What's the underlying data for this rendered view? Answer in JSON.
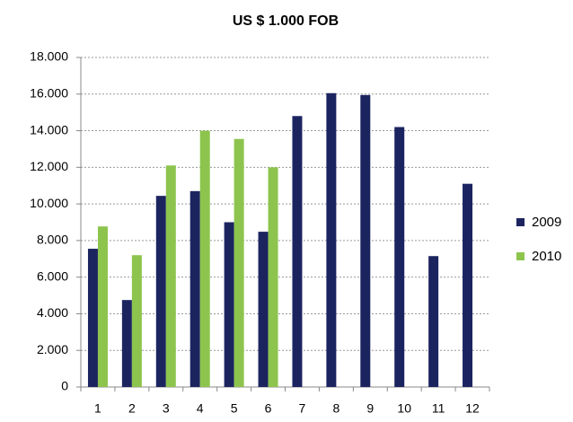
{
  "chart_data": {
    "type": "bar",
    "title": "US $ 1.000 FOB",
    "categories": [
      "1",
      "2",
      "3",
      "4",
      "5",
      "6",
      "7",
      "8",
      "9",
      "10",
      "11",
      "12"
    ],
    "series": [
      {
        "name": "2009",
        "color": "#1c2460",
        "values": [
          7550,
          4750,
          10440,
          10700,
          9000,
          8480,
          14800,
          16050,
          15950,
          14200,
          7150,
          11100
        ]
      },
      {
        "name": "2010",
        "color": "#8dc44e",
        "values": [
          8770,
          7200,
          12100,
          14000,
          13550,
          12000,
          null,
          null,
          null,
          null,
          null,
          null
        ]
      }
    ],
    "ylim": [
      0,
      18000
    ],
    "yticks": [
      0,
      {
        "value": 2000,
        "label": "2.000"
      },
      {
        "value": 4000,
        "label": "4.000"
      },
      {
        "value": 6000,
        "label": "6.000"
      },
      {
        "value": 8000,
        "label": "8.000"
      },
      {
        "value": 10000,
        "label": "10.000"
      },
      {
        "value": 12000,
        "label": "12.000"
      },
      {
        "value": 14000,
        "label": "14.000"
      },
      {
        "value": 16000,
        "label": "16.000"
      },
      {
        "value": 18000,
        "label": "18.000"
      }
    ],
    "grid": true,
    "legend": "right"
  }
}
